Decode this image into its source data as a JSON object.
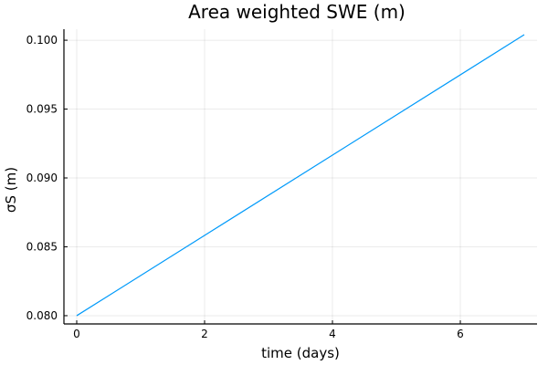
{
  "chart_data": {
    "type": "line",
    "title": "Area weighted SWE (m)",
    "xlabel": "time (days)",
    "ylabel": "σS (m)",
    "xlim": [
      -0.2,
      7.2
    ],
    "ylim": [
      0.0794,
      0.1008
    ],
    "xticks": [
      0,
      2,
      4,
      6
    ],
    "xtick_labels": [
      "0",
      "2",
      "4",
      "6"
    ],
    "yticks": [
      0.08,
      0.085,
      0.09,
      0.095,
      0.1
    ],
    "ytick_labels": [
      "0.080",
      "0.085",
      "0.090",
      "0.095",
      "0.100"
    ],
    "grid": true,
    "legend": "none",
    "series": [
      {
        "color": "#009AFA",
        "x": [
          0,
          7
        ],
        "y": [
          0.08,
          0.1004
        ]
      }
    ]
  }
}
